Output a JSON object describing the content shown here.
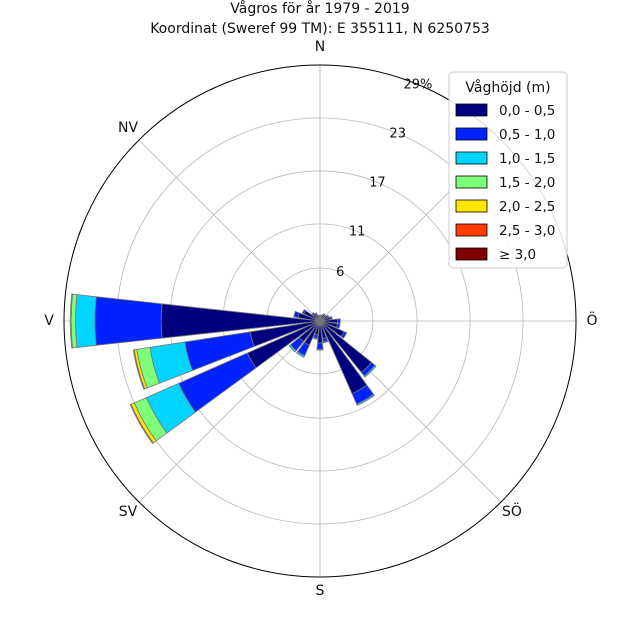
{
  "chart_data": {
    "type": "bar",
    "subtype": "polar-stacked",
    "title": "Vågros för år 1979 - 2019",
    "subtitle": "Koordinat (Sweref 99 TM): E 355111, N 6250753",
    "directions": [
      "N",
      "Ö",
      "S",
      "V",
      "NV",
      "SV",
      "SÖ"
    ],
    "radial_ticks": [
      "6",
      "11",
      "17",
      "23",
      "29%"
    ],
    "radial_tick_values": [
      6,
      11,
      17,
      23,
      29
    ],
    "rmax": 29,
    "legend_title": "Våghöjd (m)",
    "legend_position": "top-right",
    "grid": true,
    "series": [
      {
        "name": "0,0 - 0,5",
        "color": "#00007f"
      },
      {
        "name": "0,5 - 1,0",
        "color": "#0022ff"
      },
      {
        "name": "1,0 - 1,5",
        "color": "#00d4ff"
      },
      {
        "name": "1,5 - 2,0",
        "color": "#7dff7a"
      },
      {
        "name": "2,0 - 2,5",
        "color": "#ffe500"
      },
      {
        "name": "2,5 - 3,0",
        "color": "#ff3b00"
      },
      {
        "name": "≥ 3,0",
        "color": "#7f0000"
      }
    ],
    "sectors": [
      {
        "dir_deg": 90,
        "values": [
          2.0,
          0.3,
          0,
          0,
          0,
          0,
          0
        ]
      },
      {
        "dir_deg": 105,
        "values": [
          2.0,
          0.3,
          0,
          0,
          0,
          0,
          0
        ]
      },
      {
        "dir_deg": 135,
        "values": [
          7.5,
          0.5,
          0.15,
          0,
          0,
          0,
          0
        ]
      },
      {
        "dir_deg": 150,
        "values": [
          9.0,
          1.3,
          0.15,
          0,
          0,
          0,
          0
        ]
      },
      {
        "dir_deg": 165,
        "values": [
          2.0,
          0.4,
          0.1,
          0,
          0,
          0,
          0
        ]
      },
      {
        "dir_deg": 180,
        "values": [
          2.5,
          0.7,
          0.1,
          0,
          0,
          0,
          0
        ]
      },
      {
        "dir_deg": 195,
        "values": [
          1.6,
          0.4,
          0.1,
          0,
          0,
          0,
          0
        ]
      },
      {
        "dir_deg": 210,
        "values": [
          3.0,
          1.3,
          0.2,
          0,
          0,
          0,
          0
        ]
      },
      {
        "dir_deg": 225,
        "values": [
          3.0,
          1.3,
          0.2,
          0,
          0,
          0,
          0
        ]
      },
      {
        "dir_deg": 240,
        "values": [
          9.0,
          8.5,
          4.0,
          1.5,
          0.4,
          0.1,
          0
        ]
      },
      {
        "dir_deg": 255,
        "values": [
          8.0,
          7.5,
          4.0,
          1.5,
          0.3,
          0.1,
          0
        ]
      },
      {
        "dir_deg": 270,
        "values": [
          18.0,
          7.5,
          2.2,
          0.5,
          0.1,
          0,
          0
        ]
      },
      {
        "dir_deg": 285,
        "values": [
          2.5,
          0.5,
          0,
          0,
          0,
          0,
          0
        ]
      },
      {
        "dir_deg": 300,
        "values": [
          2.0,
          0.2,
          0,
          0,
          0,
          0,
          0
        ]
      },
      {
        "dir_deg": 315,
        "values": [
          1.0,
          0.2,
          0,
          0,
          0,
          0,
          0
        ]
      },
      {
        "dir_deg": 330,
        "values": [
          0.8,
          0.2,
          0,
          0,
          0,
          0,
          0
        ]
      },
      {
        "dir_deg": 345,
        "values": [
          0.6,
          0.1,
          0,
          0,
          0,
          0,
          0
        ]
      },
      {
        "dir_deg": 0,
        "values": [
          0.5,
          0.1,
          0,
          0,
          0,
          0,
          0
        ]
      },
      {
        "dir_deg": 15,
        "values": [
          0.6,
          0.1,
          0,
          0,
          0,
          0,
          0
        ]
      },
      {
        "dir_deg": 30,
        "values": [
          0.8,
          0.1,
          0,
          0,
          0,
          0,
          0
        ]
      },
      {
        "dir_deg": 45,
        "values": [
          0.8,
          0.1,
          0,
          0,
          0,
          0,
          0
        ]
      },
      {
        "dir_deg": 60,
        "values": [
          1.0,
          0.1,
          0,
          0,
          0,
          0,
          0
        ]
      },
      {
        "dir_deg": 75,
        "values": [
          1.2,
          0.2,
          0,
          0,
          0,
          0,
          0
        ]
      },
      {
        "dir_deg": 120,
        "values": [
          3.0,
          0.3,
          0,
          0,
          0,
          0,
          0
        ]
      }
    ]
  }
}
